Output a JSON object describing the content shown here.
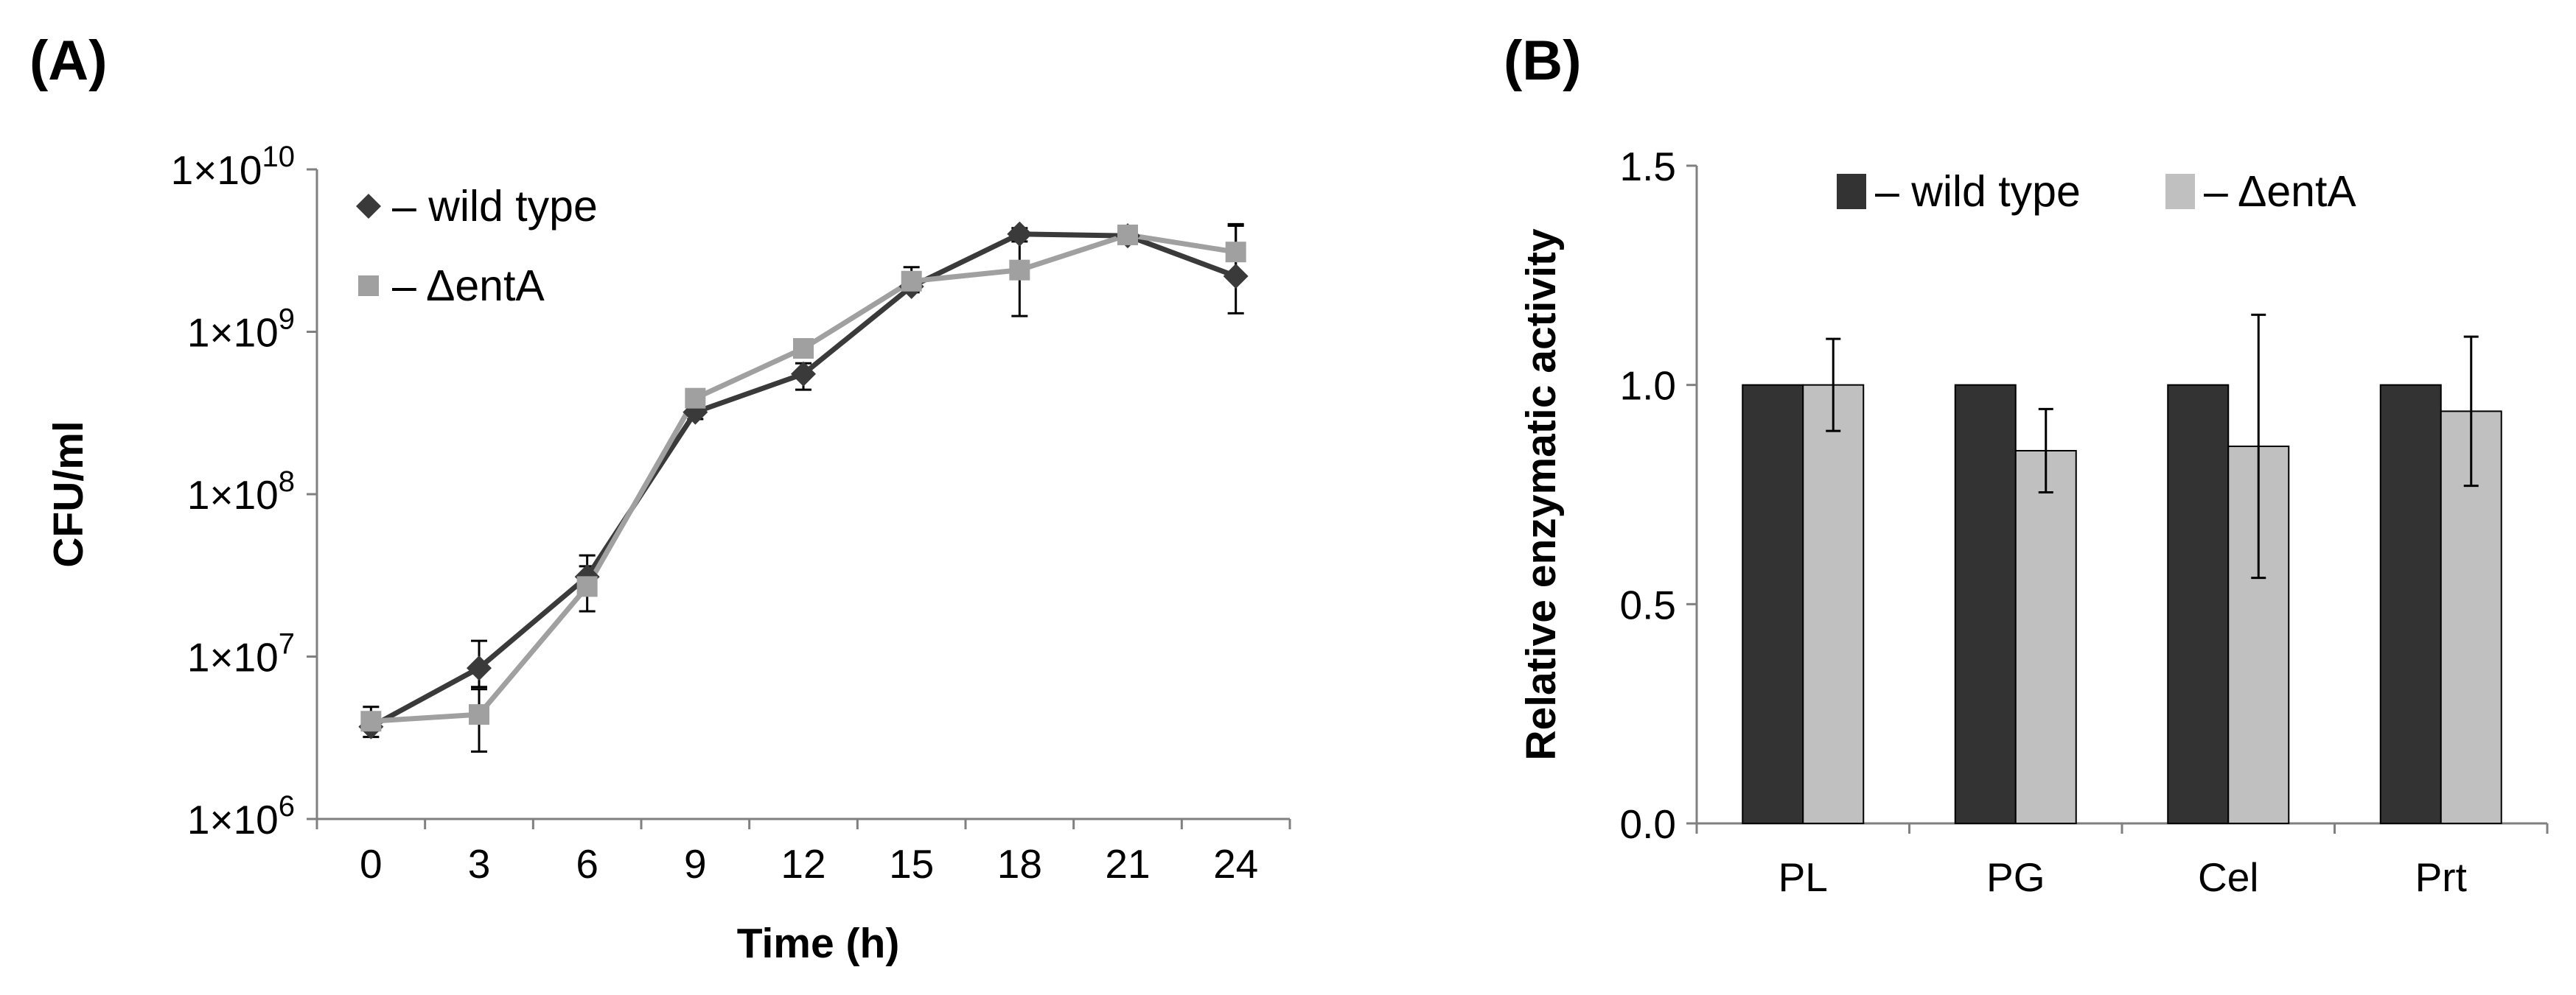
{
  "figure": {
    "panel_a_label": "(A)",
    "panel_b_label": "(B)"
  },
  "chart_data": [
    {
      "type": "line",
      "panel": "(A)",
      "xlabel": "Time (h)",
      "ylabel": "CFU/ml",
      "yscale": "log",
      "ylim": [
        1000000,
        10000000000
      ],
      "ytick_labels": [
        {
          "base": "1×10",
          "exp": "6"
        },
        {
          "base": "1×10",
          "exp": "7"
        },
        {
          "base": "1×10",
          "exp": "8"
        },
        {
          "base": "1×10",
          "exp": "9"
        },
        {
          "base": "1×10",
          "exp": "10"
        }
      ],
      "x": [
        0,
        3,
        6,
        9,
        12,
        15,
        18,
        21,
        24
      ],
      "xtick_labels": [
        "0",
        "3",
        "6",
        "9",
        "12",
        "15",
        "18",
        "21",
        "24"
      ],
      "grid": false,
      "legend_position": "top-left",
      "series": [
        {
          "name": "– wild type",
          "marker": "diamond",
          "color": "#3a3a3a",
          "values": [
            3700000,
            8500000,
            31000000,
            320000000,
            550000000,
            1900000000,
            4000000000,
            3900000000,
            2200000000
          ],
          "error_low": [
            3200000,
            6500000,
            25000000,
            290000000,
            440000000,
            1750000000,
            3600000000,
            3600000000,
            1300000000
          ],
          "error_high": [
            4300000,
            12500000,
            42000000,
            360000000,
            640000000,
            2100000000,
            4350000000,
            4200000000,
            4600000000
          ]
        },
        {
          "name": "– ΔentA",
          "marker": "square",
          "color": "#a0a0a0",
          "values": [
            4000000,
            4400000,
            27000000,
            390000000,
            790000000,
            2050000000,
            2400000000,
            3950000000,
            3100000000
          ],
          "error_low": [
            3500000,
            2600000,
            19000000,
            330000000,
            700000000,
            1800000000,
            1250000000,
            3650000000,
            2300000000
          ],
          "error_high": [
            4900000,
            6300000,
            36000000,
            430000000,
            880000000,
            2500000000,
            3900000000,
            4350000000,
            4500000000
          ]
        }
      ]
    },
    {
      "type": "bar",
      "panel": "(B)",
      "xlabel": "",
      "ylabel": "Relative enzymatic activity",
      "ylim": [
        0,
        1.5
      ],
      "yticks": [
        "0.0",
        "0.5",
        "1.0",
        "1.5"
      ],
      "categories": [
        "PL",
        "PG",
        "Cel",
        "Prt"
      ],
      "grid": false,
      "legend_position": "top",
      "series": [
        {
          "name": "– wild type",
          "color": "#333333",
          "values": [
            1.0,
            1.0,
            1.0,
            1.0
          ],
          "errors": [
            0,
            0,
            0,
            0
          ]
        },
        {
          "name": "– ΔentA",
          "color": "#c0c0c0",
          "values": [
            1.0,
            0.85,
            0.86,
            0.94
          ],
          "errors": [
            0.105,
            0.095,
            0.3,
            0.17
          ]
        }
      ]
    }
  ]
}
